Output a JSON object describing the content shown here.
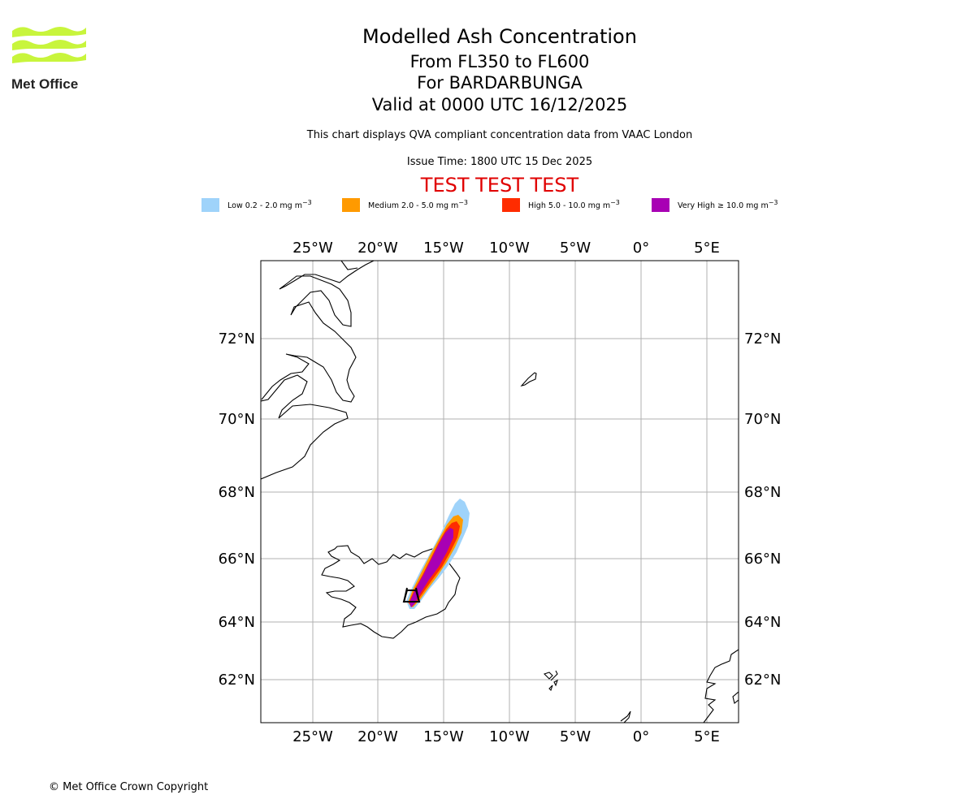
{
  "logo": {
    "text": "Met Office",
    "color": "#c8f53c"
  },
  "header": {
    "title": "Modelled Ash Concentration",
    "levels": "From FL350 to FL600",
    "volcano": "For BARDARBUNGA",
    "valid": "Valid at 0000 UTC 16/12/2025",
    "description": "This chart displays QVA compliant concentration data from VAAC London",
    "issue_time": "Issue Time: 1800 UTC 15 Dec 2025",
    "test_banner": "TEST TEST TEST",
    "test_color": "#e00000"
  },
  "legend": [
    {
      "label": "Low 0.2 - 2.0 mg m",
      "sup": "−3",
      "color": "#9fd3fa"
    },
    {
      "label": "Medium 2.0 - 5.0 mg m",
      "sup": "−3",
      "color": "#ff9a00"
    },
    {
      "label": "High 5.0 - 10.0 mg m",
      "sup": "−3",
      "color": "#ff2c00"
    },
    {
      "label": "Very High  ≥  10.0 mg m",
      "sup": "−3",
      "color": "#a800b4"
    }
  ],
  "map": {
    "longitude_ticks": [
      "25°W",
      "20°W",
      "15°W",
      "10°W",
      "5°W",
      "0°",
      "5°E"
    ],
    "latitude_ticks": [
      "72°N",
      "70°N",
      "68°N",
      "66°N",
      "64°N",
      "62°N"
    ],
    "volcano_marker": "triangle-marker"
  },
  "footer": {
    "copyright": "© Met Office Crown Copyright"
  }
}
